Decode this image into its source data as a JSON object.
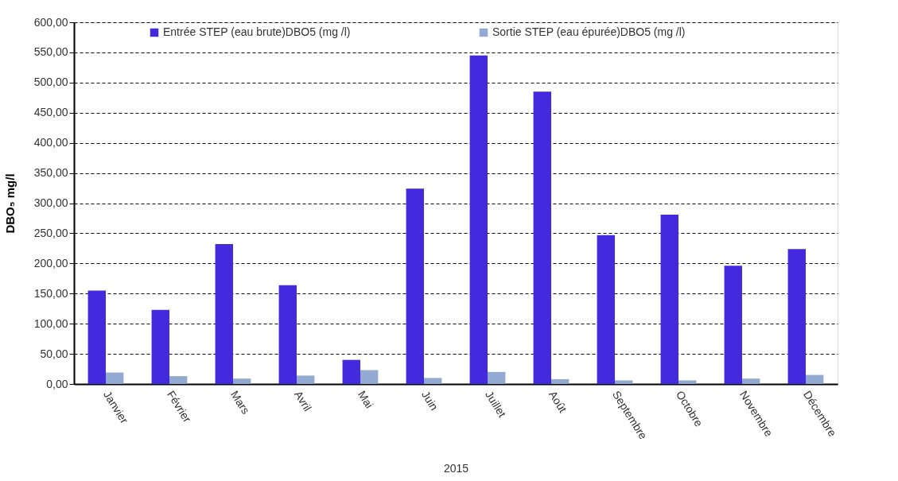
{
  "chart_data": {
    "type": "bar",
    "xlabel": "2015",
    "ylabel": "DBO₅ mg/l",
    "categories": [
      "Janvier",
      "Février",
      "Mars",
      "Avril",
      "Mai",
      "Juin",
      "Juillet",
      "Août",
      "Septembre",
      "Octobre",
      "Novembre",
      "Décembre"
    ],
    "series": [
      {
        "name": "Entrée STEP (eau brute)DBO5 (mg /l)",
        "color": "#432ade",
        "values": [
          155,
          123,
          232,
          164,
          40,
          324,
          545,
          485,
          247,
          281,
          196,
          224
        ]
      },
      {
        "name": "Sortie STEP (eau épurée)DBO5 (mg /l)",
        "color": "#92a9d1",
        "values": [
          19,
          13,
          9,
          14,
          23,
          10,
          20,
          8,
          6,
          6,
          9,
          15
        ]
      }
    ],
    "ylim": [
      0,
      600
    ],
    "yticks": [
      {
        "value": 0,
        "label": "0,00"
      },
      {
        "value": 50,
        "label": "50,00"
      },
      {
        "value": 100,
        "label": "100,00"
      },
      {
        "value": 150,
        "label": "150,00"
      },
      {
        "value": 200,
        "label": "200,00"
      },
      {
        "value": 250,
        "label": "250,00"
      },
      {
        "value": 300,
        "label": "300,00"
      },
      {
        "value": 350,
        "label": "350,00"
      },
      {
        "value": 400,
        "label": "400,00"
      },
      {
        "value": 450,
        "label": "450,00"
      },
      {
        "value": 500,
        "label": "500,00"
      },
      {
        "value": 550,
        "label": "550,00"
      },
      {
        "value": 600,
        "label": "600,00"
      }
    ],
    "grid": "y",
    "legend": "top"
  }
}
